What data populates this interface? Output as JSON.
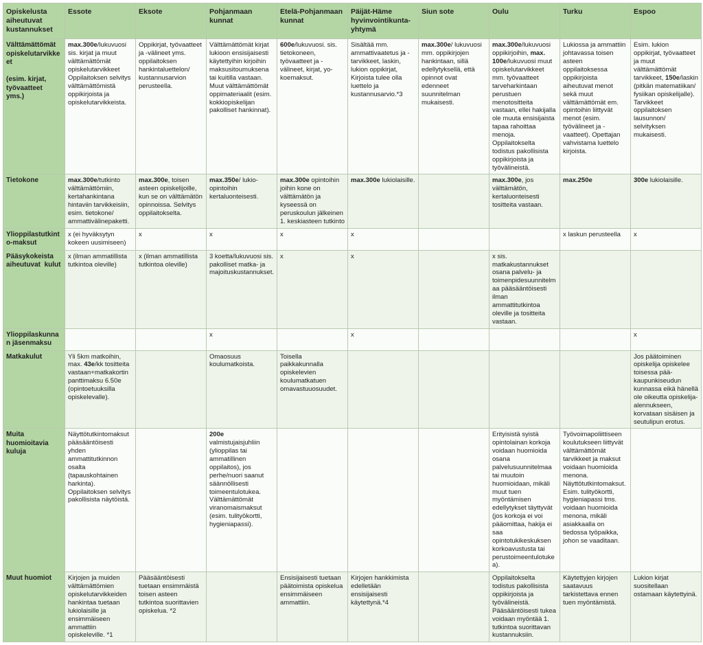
{
  "colors": {
    "header_bg": "#b4d6a4",
    "border": "#b8c9b0",
    "row_alt_bg": "#eef4ea",
    "row_bg": "#fafcf9",
    "text": "#222222"
  },
  "font": {
    "family": "Arial",
    "size_pt": 9.5,
    "header_size_pt": 10.5
  },
  "corner": "Opiskelusta aiheutuvat kustannukset",
  "columns": [
    "Essote",
    "Eksote",
    "Pohjanmaan kunnat",
    "Etelä-Pohjanmaan kunnat",
    "Päijät-Häme hyvinvointikunta-yhtymä",
    "Siun sote",
    "Oulu",
    "Turku",
    "Espoo"
  ],
  "rows": [
    {
      "label_html": "Välttämättömät opiskelutarvikkeet<br><br>(esim. kirjat, työvaatteet yms.)",
      "cells": [
        "<span class='b'>max.300e</span>/lukuvuosi sis. kirjat ja muut välttämättömät opiskelutarvikkeet Oppilaitoksen selvitys välttämättömistä oppikirjoista ja opiskelutarvikkeista.",
        "Oppikirjat, työvaatteet ja -välineet yms. oppilaitoksen hankintaluettelon/ kustannusarvion perusteella.",
        "Välttämättömät kirjat lukioon ensisijaisesti käytettyihin kirjoihin maksusitoumuksena tai kuitilla vastaan. Muut välttämättömät oppimateriaalit (esim. kokkiopiskelijan pakolliset hankinnat).",
        "<span class='b'>600e</span>/lukuvuosi. sis. tietokoneen, työvaatteet ja -välineet, kirjat, yo-koemaksut.",
        "Sisältää mm. ammattivaatetus ja -tarvikkeet, laskin, lukion oppikirjat, Kirjoista tulee olla luettelo ja kustannusarvio.*3",
        "<span class='b'>max.300e</span>/ lukuvuosi mm. oppikirjojen hankintaan, sillä edellytyksellä, että opinnot ovat edenneet suunnitelman mukaisesti.",
        "<span class='b'>max.300e</span>/lukuvuosi oppikirjoihin, <span class='b'>max. 100e</span>/lukuvuosi muut opiskelutarvikkeet mm. työvaatteet tarveharkintaan perustuen menotositteita vastaan, ellei hakijalla ole muuta ensisijaista tapaa rahoittaa menoja. Oppilaitokselta todistus pakollisista oppikirjoista ja työvälineistä.",
        "Lukiossa ja ammattiin johtavassa toisen asteen oppilaitoksessa oppikirjoista aiheutuvat menot sekä muut välttämättömät em. opintoihin liittyvät menot (esim. työvälineet ja -vaatteet). Opettajan vahvistama luettelo kirjoista.",
        "Esim. lukion oppikirjat, työvaatteet ja muut välttämättömät tarvikkeet, <span class='b'>150e</span>/laskin (pitkän matematiikan/ fysiikan opiskelijalle). Tarvikkeet oppilaitoksen lausunnon/ selvityksen mukaisesti."
      ]
    },
    {
      "label_html": "Tietokone",
      "cells": [
        "<span class='b'>max.300e</span>/tutkinto välttämättömiin, kertahankintana hintaviin tarvikkeisiin, esim. tietokone/ ammattivälinepaketti.",
        "<span class='b'>max.300e</span>, toisen asteen opiskelijoille, kun se on välttämätön opinnoissa. Selvitys oppilaitokselta.",
        "<span class='b'>max.350e</span>/ lukio-opintoihin kertaluonteisesti.",
        "<span class='b'>max.300e</span> opintoihin joihin kone on välttämätön ja kyseessä on peruskoulun jälkeinen 1. keskiasteen tutkinto",
        "<span class='b'>max.300e</span> lukiolaisille.",
        "",
        "<span class='b'>max.300e</span>, jos välttämätön, kertaluonteisesti tositteita vastaan.",
        "<span class='b'>max.250e</span>",
        "<span class='b'>300e</span> lukiolaisille."
      ]
    },
    {
      "label_html": "Ylioppilastutkinto-maksut",
      "cells": [
        "x (ei hyväksytyn kokeen uusimiseen)",
        "x",
        "x",
        "x",
        "x",
        "",
        "",
        "x laskun perusteella",
        "x"
      ]
    },
    {
      "label_html": "Pääsykokeista aiheutuvat &nbsp;kulut",
      "cells": [
        "x (ilman ammatillista tutkintoa oleville)",
        "x (ilman ammatillista tutkintoa oleville)",
        "3 koetta/lukuvuosi sis. pakolliset matka- ja majoituskustannukset.",
        "x",
        "x",
        "",
        "x sis. matkakustannukset osana palvelu- ja toimenpidesuunnitelmaa pääsääntöisesti ilman ammattitutkintoa oleville ja tositteita vastaan.",
        "",
        ""
      ]
    },
    {
      "label_html": "Ylioppilaskunnan jäsenmaksu",
      "cells": [
        "",
        "",
        "x",
        "",
        "x",
        "",
        "",
        "",
        "x"
      ]
    },
    {
      "label_html": "Matkakulut",
      "cells": [
        "Yli 5km matkoihin, max. <span class='b'>43e</span>/kk tositteita vastaan+matkakortin panttimaksu 6.50e (opintoetuuksilla opiskelevalle).",
        "",
        "Omaosuus koulumatkoista.",
        "Toisella paikkakunnalla opiskelevien koulumatkatuen omavastuuosuudet.",
        "",
        "",
        "",
        "",
        "Jos päätoiminen opiskelija opiskelee toisessa pää-kaupunkiseudun kunnassa eikä hänellä ole oikeutta opiskelija-alennukseen, korvataan sisäisen ja seutulipun erotus."
      ]
    },
    {
      "label_html": "Muita huomioitavia kuluja",
      "cells": [
        "Näyttötutkintomaksut pääsääntöisesti yhden ammattitutkinnon osalta (tapauskohtainen harkinta). Oppilaitoksen selvitys pakollisista näytöistä.",
        "",
        "<span class='b'>200e</span> valmistujaisjuhliin (ylioppilas tai ammatillinen oppilaitos), jos perhe/nuori saanut säännöllisesti toimeentulotukea. Välttämättömät viranomaismaksut (esim. tulityökortti, hygieniapassi).",
        "",
        "",
        "",
        "Erityisistä syistä opintolainan korkoja voidaan huomioida osana palvelusuunnitelmaa tai muutoin huomioidaan, mikäli muut tuen myöntämisen edellytykset täyttyvät (jos korkoja ei voi pääomittaa, hakija ei saa opintotukikeskuksen korkoavustusta tai perustoimeentulotukea).",
        "Työvoimapoliittiseen koulutukseen liittyvät välttämättömät tarvikkeet ja maksut voidaan huomioida menona. Näyttötutkintomaksut. Esim. tulityökortti, hygieniapassi tms. voidaan huomioida menona, mikäli asiakkaalla on tiedossa työpaikka, johon se vaaditaan.",
        ""
      ]
    },
    {
      "label_html": "Muut huomiot",
      "cells": [
        "Kirjojen ja muiden välttämättömien opiskelutarvikkeiden hankintaa tuetaan lukiolaisille ja ensimmäiseen ammattiin opiskeleville. *1",
        "Pääsääntöisesti tuetaan ensimmäistä toisen asteen tutkintoa suorittavien opiskelua. *2",
        "",
        "Ensisijaisesti tuetaan päätoimista opiskelua ensimmäiseen ammattiin.",
        "Kirjojen hankkimista edelletään ensisijaisesti käytettynä.*4",
        "",
        "Oppilaitokselta todistus pakollisista oppikirjoista ja työvälineistä. Pääsääntöisesti tukea voidaan myöntää 1. tutkintoa suorittavan kustannuksiin.",
        "Käytettyjen kirjojen saatavuus tarkistettava ennen tuen myöntämistä.",
        "Lukion kirjat suositellaan ostamaan käytettyinä."
      ]
    }
  ]
}
